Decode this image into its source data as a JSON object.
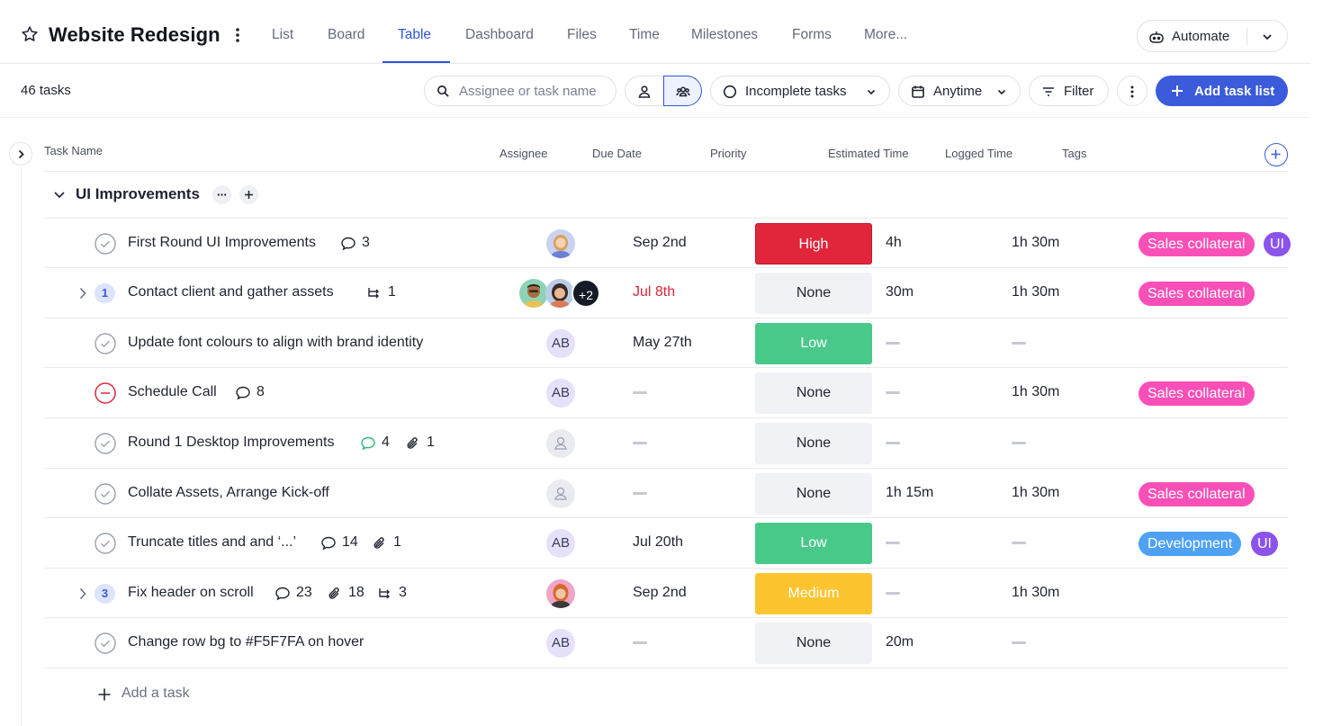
{
  "header": {
    "project_title": "Website Redesign",
    "tabs": [
      {
        "label": "List"
      },
      {
        "label": "Board"
      },
      {
        "label": "Table",
        "active": true
      },
      {
        "label": "Dashboard"
      },
      {
        "label": "Files"
      },
      {
        "label": "Time"
      },
      {
        "label": "Milestones"
      },
      {
        "label": "Forms"
      },
      {
        "label": "More..."
      }
    ],
    "automate_label": "Automate"
  },
  "toolbar": {
    "task_count": "46 tasks",
    "search_placeholder": "Assignee or task name",
    "status_filter": "Incomplete tasks",
    "date_filter": "Anytime",
    "filter_label": "Filter",
    "add_list_label": "Add task list"
  },
  "columns": [
    "Task Name",
    "Assignee",
    "Due Date",
    "Priority",
    "Estimated Time",
    "Logged Time",
    "Tags"
  ],
  "group": {
    "title": "UI Improvements",
    "more_label": "···"
  },
  "tasks": [
    {
      "name": "First Round UI Improvements",
      "comments": "3",
      "assignee": "photo",
      "due": "Sep 2nd",
      "priority": "High",
      "estimated": "4h",
      "logged": "1h 30m",
      "tags": [
        "Sales collateral",
        "UI"
      ]
    },
    {
      "name": "Contact client and gather assets",
      "subtasks_badge": "1",
      "subtasks": "1",
      "assignee": "group",
      "assignee_more": "+2",
      "due": "Jul 8th",
      "due_overdue": true,
      "priority": "None",
      "estimated": "30m",
      "logged": "1h 30m",
      "tags": [
        "Sales collateral"
      ]
    },
    {
      "name": "Update font colours to align with brand identity",
      "assignee_initials": "AB",
      "due": "May 27th",
      "priority": "Low",
      "tags": []
    },
    {
      "name": "Schedule Call",
      "status": "blocked",
      "comments": "8",
      "assignee_initials": "AB",
      "priority": "None",
      "logged": "1h 30m",
      "tags": [
        "Sales collateral"
      ]
    },
    {
      "name": "Round 1 Desktop Improvements",
      "comments": "4",
      "attachments": "1",
      "assignee": "unassigned",
      "priority": "None",
      "tags": []
    },
    {
      "name": "Collate Assets, Arrange Kick-off",
      "assignee": "unassigned",
      "priority": "None",
      "estimated": "1h 15m",
      "logged": "1h 30m",
      "tags": [
        "Sales collateral"
      ]
    },
    {
      "name": "Truncate titles and and ‘...’",
      "comments": "14",
      "attachments": "1",
      "assignee_initials": "AB",
      "due": "Jul 20th",
      "priority": "Low",
      "tags": [
        "Development",
        "UI"
      ]
    },
    {
      "name": "Fix header on scroll",
      "subtasks_badge": "3",
      "comments": "23",
      "attachments": "18",
      "subtasks": "3",
      "assignee": "photo",
      "due": "Sep 2nd",
      "priority": "Medium",
      "logged": "1h 30m",
      "tags": []
    },
    {
      "name": "Change row bg to #F5F7FA on hover",
      "assignee_initials": "AB",
      "priority": "None",
      "estimated": "20m",
      "tags": []
    }
  ],
  "add_task_label": "Add a task",
  "colors": {
    "accent": "#3b5bdb",
    "high": "#e1263b",
    "low": "#48c98a",
    "medium": "#fcc52f",
    "tag_sales": "#f94fb7",
    "tag_ui": "#8b53ea",
    "tag_dev": "#4ea1f3"
  }
}
